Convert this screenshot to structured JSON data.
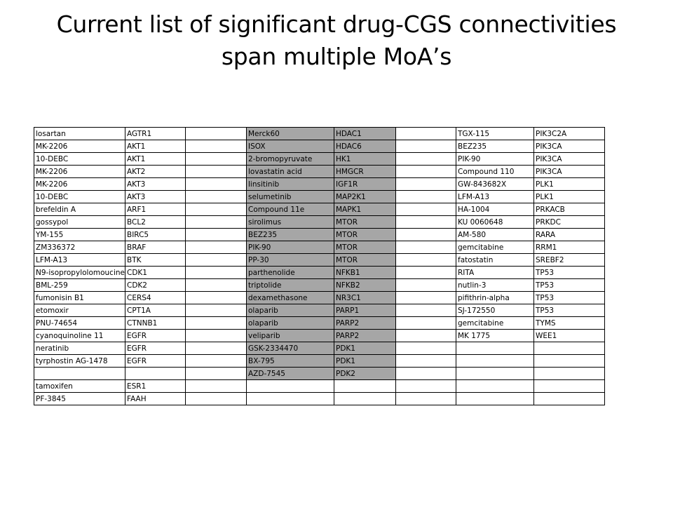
{
  "slide": {
    "title_line1": "Current list of significant drug-CGS connectivities",
    "title_line2": "span multiple MoA’s"
  },
  "table": {
    "rows": [
      [
        "losartan",
        "AGTR1",
        "",
        "Merck60",
        "HDAC1",
        "",
        "TGX-115",
        "PIK3C2A"
      ],
      [
        "MK-2206",
        "AKT1",
        "",
        "ISOX",
        "HDAC6",
        "",
        "BEZ235",
        "PIK3CA"
      ],
      [
        "10-DEBC",
        "AKT1",
        "",
        "2-bromopyruvate",
        "HK1",
        "",
        "PIK-90",
        "PIK3CA"
      ],
      [
        "MK-2206",
        "AKT2",
        "",
        "lovastatin acid",
        "HMGCR",
        "",
        "Compound 110",
        "PIK3CA"
      ],
      [
        "MK-2206",
        "AKT3",
        "",
        "linsitinib",
        "IGF1R",
        "",
        "GW-843682X",
        "PLK1"
      ],
      [
        "10-DEBC",
        "AKT3",
        "",
        "selumetinib",
        "MAP2K1",
        "",
        "LFM-A13",
        "PLK1"
      ],
      [
        "brefeldin A",
        "ARF1",
        "",
        "Compound 11e",
        "MAPK1",
        "",
        "HA-1004",
        "PRKACB"
      ],
      [
        "gossypol",
        "BCL2",
        "",
        "sirolimus",
        "MTOR",
        "",
        "KU 0060648",
        "PRKDC"
      ],
      [
        "YM-155",
        "BIRC5",
        "",
        "BEZ235",
        "MTOR",
        "",
        "AM-580",
        "RARA"
      ],
      [
        "ZM336372",
        "BRAF",
        "",
        "PIK-90",
        "MTOR",
        "",
        "gemcitabine",
        "RRM1"
      ],
      [
        "LFM-A13",
        "BTK",
        "",
        "PP-30",
        "MTOR",
        "",
        "fatostatin",
        "SREBF2"
      ],
      [
        "N9-isopropylolomoucine",
        "CDK1",
        "",
        "parthenolide",
        "NFKB1",
        "",
        "RITA",
        "TP53"
      ],
      [
        "BML-259",
        "CDK2",
        "",
        "triptolide",
        "NFKB2",
        "",
        "nutlin-3",
        "TP53"
      ],
      [
        "fumonisin B1",
        "CERS4",
        "",
        "dexamethasone",
        "NR3C1",
        "",
        "pifithrin-alpha",
        "TP53"
      ],
      [
        "etomoxir",
        "CPT1A",
        "",
        "olaparib",
        "PARP1",
        "",
        "SJ-172550",
        "TP53"
      ],
      [
        "PNU-74654",
        "CTNNB1",
        "",
        "olaparib",
        "PARP2",
        "",
        "gemcitabine",
        "TYMS"
      ],
      [
        "cyanoquinoline 11",
        "EGFR",
        "",
        "veliparib",
        "PARP2",
        "",
        "MK 1775",
        "WEE1"
      ],
      [
        "neratinib",
        "EGFR",
        "",
        "GSK-2334470",
        "PDK1",
        "",
        "",
        ""
      ],
      [
        "tyrphostin AG-1478",
        "EGFR",
        "",
        "BX-795",
        "PDK1",
        "",
        "",
        ""
      ],
      [
        "",
        "",
        "",
        "AZD-7545",
        "PDK2",
        "",
        "",
        ""
      ],
      [
        "tamoxifen",
        "ESR1",
        "",
        "",
        "",
        "",
        "",
        ""
      ],
      [
        "PF-3845",
        "FAAH",
        "",
        "",
        "",
        "",
        "",
        ""
      ]
    ]
  },
  "colors": {
    "shade": "#a6a6a6",
    "border": "#000000"
  }
}
